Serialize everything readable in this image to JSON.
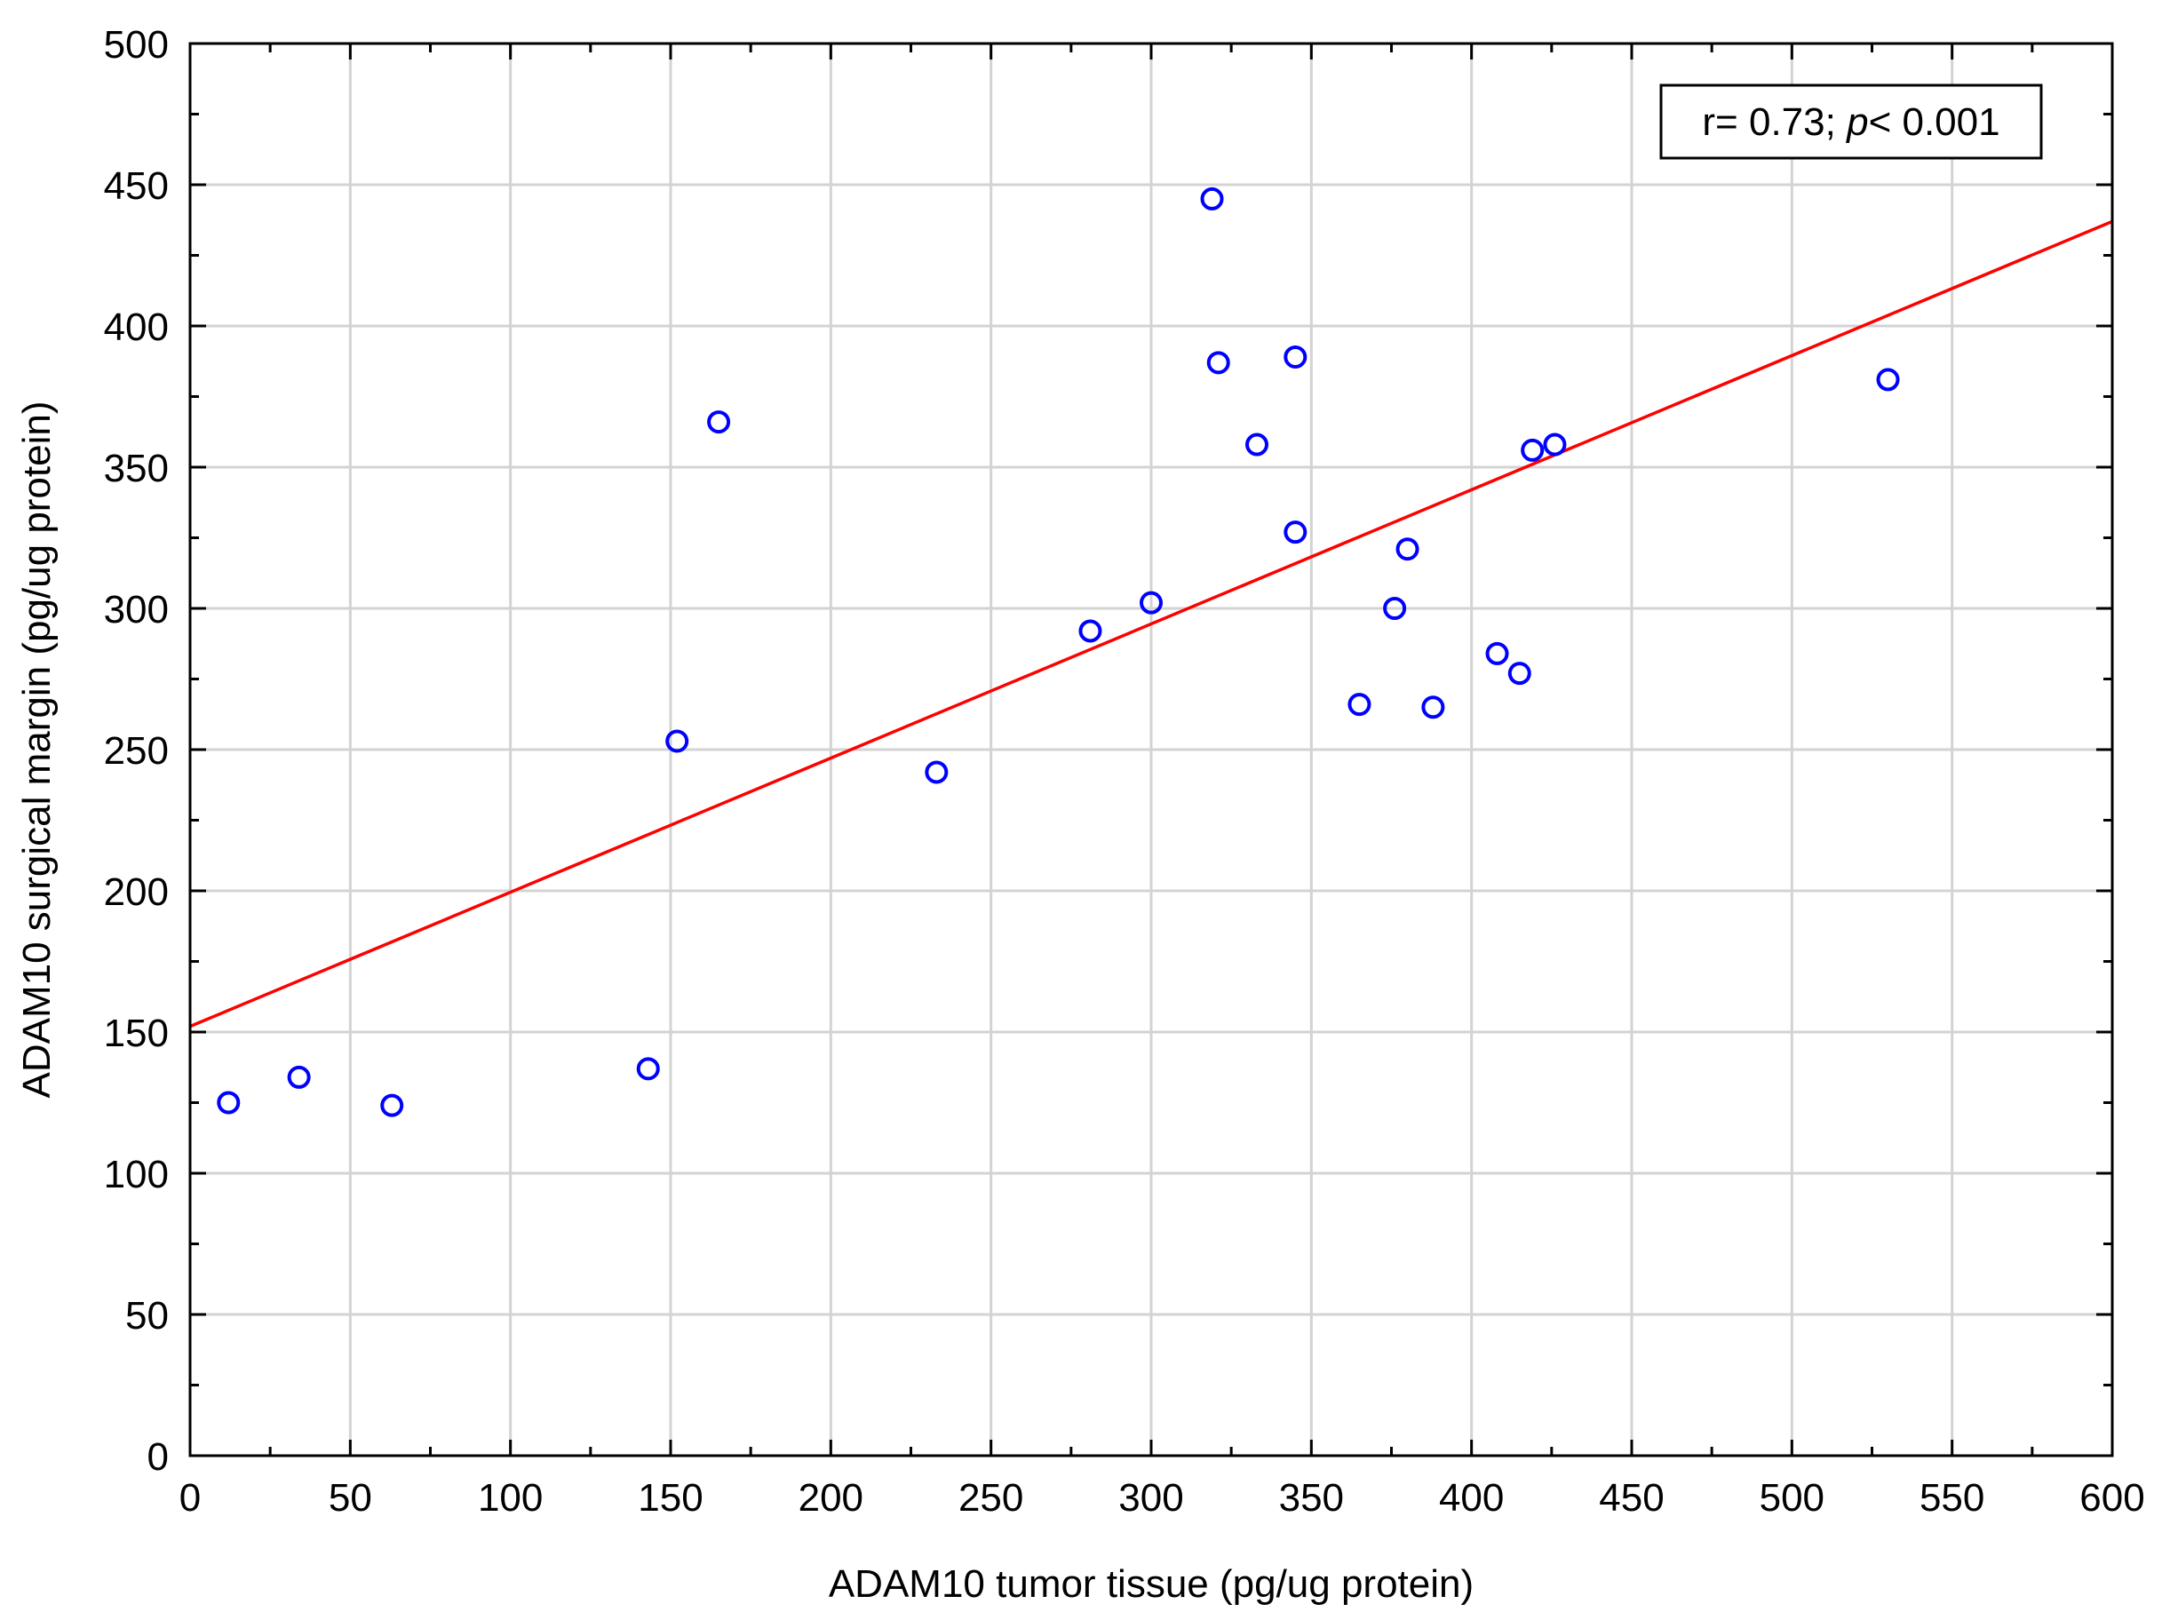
{
  "chart_data": {
    "type": "scatter",
    "title": "",
    "xlabel": "ADAM10 tumor tissue (pg/ug protein)",
    "ylabel": "ADAM10 surgical margin (pg/ug protein)",
    "xlim": [
      0,
      600
    ],
    "ylim": [
      0,
      500
    ],
    "x_ticks": [
      "0",
      "50",
      "100",
      "150",
      "200",
      "250",
      "300",
      "350",
      "400",
      "450",
      "500",
      "550",
      "600"
    ],
    "y_ticks": [
      "0",
      "50",
      "100",
      "150",
      "200",
      "250",
      "300",
      "350",
      "400",
      "450",
      "500"
    ],
    "grid": true,
    "legend": "none",
    "points": [
      {
        "x": 12,
        "y": 125
      },
      {
        "x": 34,
        "y": 134
      },
      {
        "x": 63,
        "y": 124
      },
      {
        "x": 143,
        "y": 137
      },
      {
        "x": 152,
        "y": 253
      },
      {
        "x": 165,
        "y": 366
      },
      {
        "x": 233,
        "y": 242
      },
      {
        "x": 281,
        "y": 292
      },
      {
        "x": 300,
        "y": 302
      },
      {
        "x": 319,
        "y": 445
      },
      {
        "x": 321,
        "y": 387
      },
      {
        "x": 333,
        "y": 358
      },
      {
        "x": 345,
        "y": 389
      },
      {
        "x": 345,
        "y": 327
      },
      {
        "x": 365,
        "y": 266
      },
      {
        "x": 376,
        "y": 300
      },
      {
        "x": 380,
        "y": 321
      },
      {
        "x": 388,
        "y": 265
      },
      {
        "x": 408,
        "y": 284
      },
      {
        "x": 415,
        "y": 277
      },
      {
        "x": 419,
        "y": 356
      },
      {
        "x": 426,
        "y": 358
      },
      {
        "x": 530,
        "y": 381
      }
    ],
    "regression_line": {
      "x": [
        0,
        600
      ],
      "y": [
        152,
        437
      ]
    },
    "annotation": {
      "prefix": "r= 0.73; ",
      "p_symbol": "p",
      "suffix": "< 0.001"
    },
    "colors": {
      "points": "#0000ff",
      "regression": "#ff0000",
      "grid": "#d3d3d3",
      "axis": "#000000"
    }
  }
}
